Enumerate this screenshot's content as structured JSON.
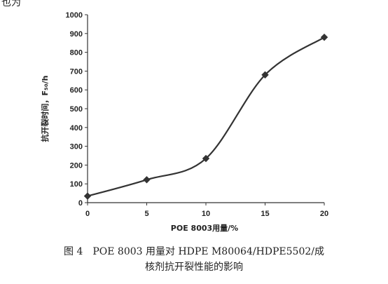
{
  "header_fragment": "也为",
  "chart_data": {
    "type": "line",
    "x": [
      0,
      5,
      10,
      15,
      20
    ],
    "series": [
      {
        "values": [
          35,
          122,
          235,
          680,
          880
        ],
        "color": "#333333",
        "marker": "diamond"
      }
    ],
    "xlabel": "POE 8003用量/%",
    "ylabel": "抗开裂时间，F₅₀/h",
    "xlim": [
      0,
      20
    ],
    "ylim": [
      0,
      1000
    ],
    "xticks": [
      "0",
      "5",
      "10",
      "15",
      "20"
    ],
    "yticks": [
      "0",
      "100",
      "200",
      "300",
      "400",
      "500",
      "600",
      "700",
      "800",
      "900",
      "1000"
    ],
    "grid": false,
    "smooth": true
  },
  "caption": {
    "line1": "图 4　POE 8003 用量对 HDPE M80064/HDPE5502/成",
    "line2": "核剂抗开裂性能的影响"
  }
}
